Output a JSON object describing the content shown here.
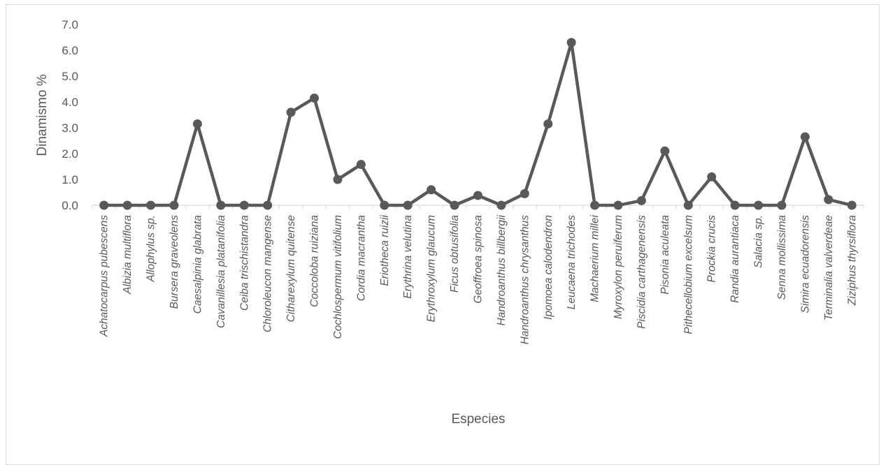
{
  "chart_data": {
    "type": "line",
    "xlabel": "Especies",
    "ylabel": "Dinamismo %",
    "ylim": [
      0,
      7
    ],
    "yticks": [
      "0.0",
      "1.0",
      "2.0",
      "3.0",
      "4.0",
      "5.0",
      "6.0",
      "7.0"
    ],
    "grid": false,
    "legend": "none",
    "categories": [
      "Achatocarpus pubescens",
      "Albizia multiflora",
      "Allophylus sp.",
      "Bursera graveolens",
      "Caesalpinia glabrata",
      "Cavanillesia platanifolia",
      "Ceiba trischistandra",
      "Chloroleucon mangense",
      "Citharexylum quitense",
      "Coccoloba ruiziana",
      "Cochlospermum vitifolium",
      "Cordia macrantha",
      "Eriotheca ruizii",
      "Erythrina velutina",
      "Erythroxylum glaucum",
      "Ficus obtusifolia",
      "Geoffroea spinosa",
      "Handroanthus billbergii",
      "Handroanthus chrysanthus",
      "Ipomoea calodendron",
      "Leucaena trichodes",
      "Machaerium millei",
      "Myroxylon peruiferum",
      "Piscidia carthagenensis",
      "Pisonia aculeata",
      "Pithecellobium excelsum",
      "Prockia crucis",
      "Randia aurantiaca",
      "Salacia sp.",
      "Senna mollissima",
      "Simira ecuadorensis",
      "Terminalia valverdeae",
      "Ziziphus thyrsiflora"
    ],
    "values": [
      0,
      0,
      0,
      0,
      3.15,
      0,
      0,
      0,
      3.6,
      4.15,
      1.0,
      1.58,
      0,
      0,
      0.6,
      0,
      0.38,
      0,
      0.45,
      3.15,
      6.3,
      0,
      0,
      0.18,
      2.1,
      0,
      1.1,
      0,
      0,
      0,
      2.65,
      0.22,
      0
    ],
    "colors": {
      "line": "#595959",
      "axis": "#d9d9d9",
      "text": "#595959"
    }
  }
}
